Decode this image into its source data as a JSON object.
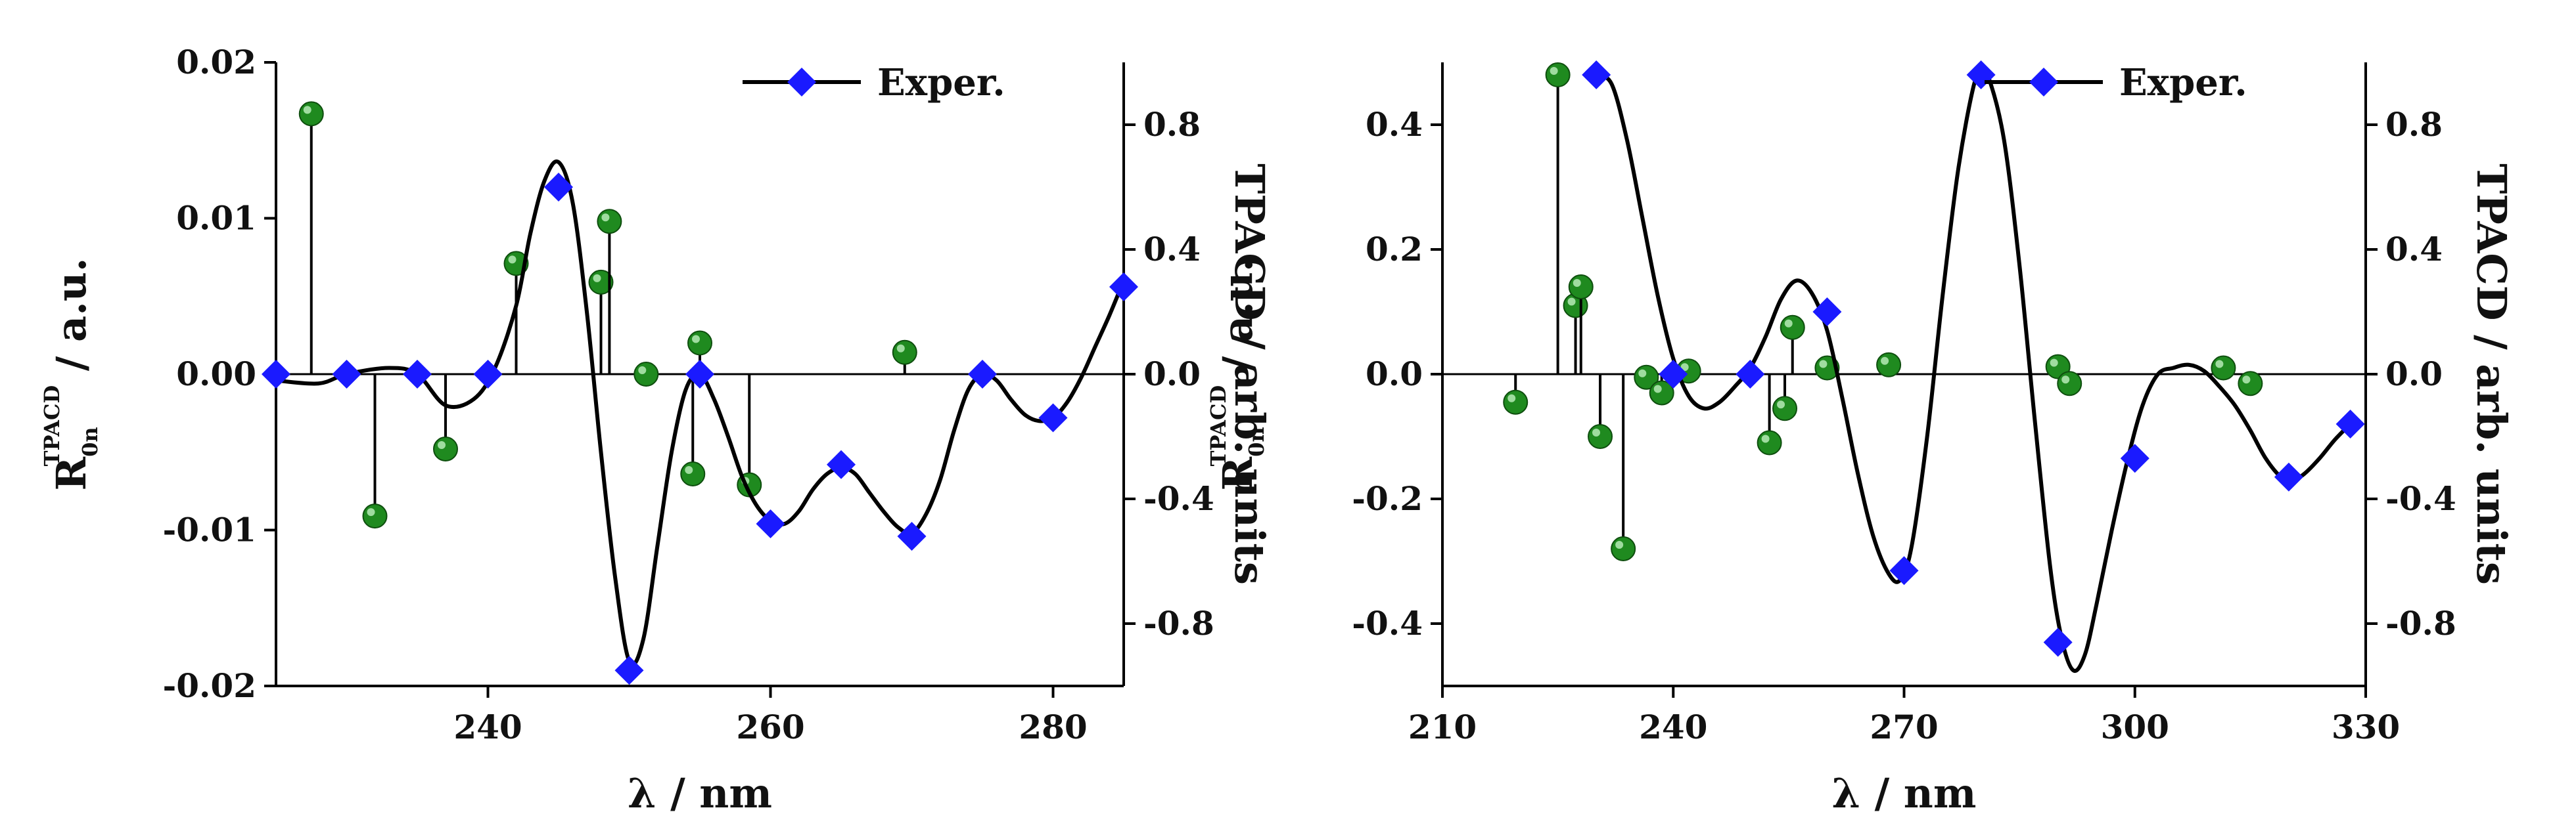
{
  "chart_data": [
    {
      "type": "line",
      "xlabel": "λ / nm",
      "ylabel_left": {
        "main": "R",
        "sub": "0n",
        "sup": "TPACD",
        "rest": " / a.u."
      },
      "ylabel_right": "TPACD / arb. units",
      "xlim": [
        225,
        285
      ],
      "ylim_left": [
        -0.02,
        0.02
      ],
      "ylim_right": [
        -1.0,
        1.0
      ],
      "xticks": [
        240,
        260,
        280
      ],
      "xtick_labels": [
        "240",
        "260",
        "280"
      ],
      "yticks_left": [
        -0.02,
        -0.01,
        0.0,
        0.01,
        0.02
      ],
      "ytick_labels_left": [
        "-0.02",
        "-0.01",
        "0.00",
        "0.01",
        "0.02"
      ],
      "yticks_right": [
        -0.8,
        -0.4,
        0.0,
        0.4,
        0.8
      ],
      "ytick_labels_right": [
        "-0.8",
        "-0.4",
        "0.0",
        "0.4",
        "0.8"
      ],
      "legend": {
        "label": "Exper.",
        "position": "top-right"
      },
      "colors": {
        "curve": "#000000",
        "exper_marker": "#1a1aff",
        "stick_ball": "#1f8a1f"
      },
      "sticks": [
        {
          "x": 227.5,
          "y": 0.0167
        },
        {
          "x": 232.0,
          "y": -0.0091
        },
        {
          "x": 237.0,
          "y": -0.0048
        },
        {
          "x": 242.0,
          "y": 0.0071
        },
        {
          "x": 248.0,
          "y": 0.0059
        },
        {
          "x": 248.6,
          "y": 0.0098
        },
        {
          "x": 251.2,
          "y": 0.0
        },
        {
          "x": 254.5,
          "y": -0.0064
        },
        {
          "x": 255.0,
          "y": 0.002
        },
        {
          "x": 258.5,
          "y": -0.0071
        },
        {
          "x": 269.5,
          "y": 0.0014
        }
      ],
      "curve": [
        [
          225,
          -0.02
        ],
        [
          228,
          -0.03
        ],
        [
          230,
          0.0
        ],
        [
          233,
          0.02
        ],
        [
          235,
          0.0
        ],
        [
          237,
          -0.1
        ],
        [
          239,
          -0.08
        ],
        [
          240.5,
          0.02
        ],
        [
          242,
          0.22
        ],
        [
          243,
          0.45
        ],
        [
          244,
          0.62
        ],
        [
          245,
          0.68
        ],
        [
          246,
          0.55
        ],
        [
          247,
          0.2
        ],
        [
          248,
          -0.25
        ],
        [
          249,
          -0.65
        ],
        [
          250,
          -0.92
        ],
        [
          251,
          -0.85
        ],
        [
          252,
          -0.55
        ],
        [
          253,
          -0.25
        ],
        [
          254,
          -0.05
        ],
        [
          255,
          0.0
        ],
        [
          256,
          -0.08
        ],
        [
          257,
          -0.2
        ],
        [
          258,
          -0.33
        ],
        [
          259,
          -0.42
        ],
        [
          260,
          -0.47
        ],
        [
          261,
          -0.48
        ],
        [
          262,
          -0.44
        ],
        [
          263,
          -0.37
        ],
        [
          264,
          -0.32
        ],
        [
          265,
          -0.3
        ],
        [
          266,
          -0.32
        ],
        [
          267,
          -0.38
        ],
        [
          268,
          -0.44
        ],
        [
          269,
          -0.49
        ],
        [
          270,
          -0.51
        ],
        [
          271,
          -0.45
        ],
        [
          272,
          -0.34
        ],
        [
          273,
          -0.18
        ],
        [
          274,
          -0.05
        ],
        [
          275,
          0.0
        ],
        [
          276,
          -0.02
        ],
        [
          277,
          -0.08
        ],
        [
          278,
          -0.13
        ],
        [
          279,
          -0.15
        ],
        [
          280,
          -0.14
        ],
        [
          281,
          -0.09
        ],
        [
          282,
          -0.01
        ],
        [
          283,
          0.09
        ],
        [
          284,
          0.19
        ],
        [
          285,
          0.3
        ]
      ],
      "exper": [
        [
          225,
          0.0
        ],
        [
          230,
          0.0
        ],
        [
          235,
          0.0
        ],
        [
          240,
          0.0
        ],
        [
          245,
          0.6
        ],
        [
          250,
          -0.95
        ],
        [
          255,
          0.0
        ],
        [
          260,
          -0.48
        ],
        [
          265,
          -0.29
        ],
        [
          270,
          -0.52
        ],
        [
          275,
          0.0
        ],
        [
          280,
          -0.14
        ],
        [
          285,
          0.28
        ]
      ]
    },
    {
      "type": "line",
      "xlabel": "λ / nm",
      "ylabel_left": {
        "main": "R",
        "sub": "0n",
        "sup": "TPACD",
        "rest": " / a.u."
      },
      "ylabel_right": "TPACD / arb. units",
      "xlim": [
        210,
        330
      ],
      "ylim_left": [
        -0.5,
        0.5
      ],
      "ylim_right": [
        -1.0,
        1.0
      ],
      "xticks": [
        210,
        240,
        270,
        300,
        330
      ],
      "xtick_labels": [
        "210",
        "240",
        "270",
        "300",
        "330"
      ],
      "yticks_left": [
        -0.4,
        -0.2,
        0.0,
        0.2,
        0.4
      ],
      "ytick_labels_left": [
        "-0.4",
        "-0.2",
        "0.0",
        "0.2",
        "0.4"
      ],
      "yticks_right": [
        -0.8,
        -0.4,
        0.0,
        0.4,
        0.8
      ],
      "ytick_labels_right": [
        "-0.8",
        "-0.4",
        "0.0",
        "0.4",
        "0.8"
      ],
      "legend": {
        "label": "Exper.",
        "position": "top-right"
      },
      "colors": {
        "curve": "#000000",
        "exper_marker": "#1a1aff",
        "stick_ball": "#1f8a1f"
      },
      "sticks": [
        {
          "x": 219.5,
          "y": -0.045
        },
        {
          "x": 225.0,
          "y": 0.48
        },
        {
          "x": 227.3,
          "y": 0.11
        },
        {
          "x": 228.0,
          "y": 0.14
        },
        {
          "x": 230.5,
          "y": -0.1
        },
        {
          "x": 233.5,
          "y": -0.28
        },
        {
          "x": 236.5,
          "y": -0.005
        },
        {
          "x": 238.5,
          "y": -0.03
        },
        {
          "x": 242.0,
          "y": 0.005
        },
        {
          "x": 252.5,
          "y": -0.11
        },
        {
          "x": 254.5,
          "y": -0.055
        },
        {
          "x": 255.5,
          "y": 0.075
        },
        {
          "x": 260.0,
          "y": 0.01
        },
        {
          "x": 268.0,
          "y": 0.015
        },
        {
          "x": 290.0,
          "y": 0.012
        },
        {
          "x": 291.5,
          "y": -0.015
        },
        {
          "x": 311.5,
          "y": 0.01
        },
        {
          "x": 315.0,
          "y": -0.015
        }
      ],
      "curve": [
        [
          230,
          0.96
        ],
        [
          232,
          0.93
        ],
        [
          234,
          0.75
        ],
        [
          236,
          0.5
        ],
        [
          238,
          0.25
        ],
        [
          240,
          0.05
        ],
        [
          242,
          -0.07
        ],
        [
          244,
          -0.11
        ],
        [
          246,
          -0.09
        ],
        [
          248,
          -0.04
        ],
        [
          250,
          0.02
        ],
        [
          252,
          0.12
        ],
        [
          254,
          0.24
        ],
        [
          256,
          0.3
        ],
        [
          258,
          0.26
        ],
        [
          260,
          0.14
        ],
        [
          262,
          -0.08
        ],
        [
          264,
          -0.32
        ],
        [
          266,
          -0.52
        ],
        [
          268,
          -0.64
        ],
        [
          269.5,
          -0.66
        ],
        [
          271,
          -0.55
        ],
        [
          273,
          -0.2
        ],
        [
          275,
          0.25
        ],
        [
          277,
          0.65
        ],
        [
          279,
          0.92
        ],
        [
          280,
          0.96
        ],
        [
          281,
          0.95
        ],
        [
          283,
          0.75
        ],
        [
          285,
          0.35
        ],
        [
          287,
          -0.15
        ],
        [
          289,
          -0.62
        ],
        [
          290.5,
          -0.85
        ],
        [
          292,
          -0.95
        ],
        [
          293.5,
          -0.9
        ],
        [
          295,
          -0.74
        ],
        [
          297,
          -0.5
        ],
        [
          299,
          -0.28
        ],
        [
          301,
          -0.1
        ],
        [
          303,
          0.0
        ],
        [
          305,
          0.02
        ],
        [
          307,
          0.03
        ],
        [
          309,
          0.01
        ],
        [
          311,
          -0.04
        ],
        [
          313,
          -0.1
        ],
        [
          315,
          -0.18
        ],
        [
          317,
          -0.27
        ],
        [
          319,
          -0.33
        ],
        [
          320.5,
          -0.34
        ],
        [
          322,
          -0.32
        ],
        [
          324,
          -0.27
        ],
        [
          326,
          -0.21
        ],
        [
          328,
          -0.16
        ]
      ],
      "exper": [
        [
          230,
          0.96
        ],
        [
          240,
          0.0
        ],
        [
          250,
          0.0
        ],
        [
          260,
          0.2
        ],
        [
          270,
          -0.63
        ],
        [
          280,
          0.96
        ],
        [
          290,
          -0.86
        ],
        [
          300,
          -0.27
        ],
        [
          320,
          -0.33
        ],
        [
          328,
          -0.16
        ]
      ]
    }
  ]
}
